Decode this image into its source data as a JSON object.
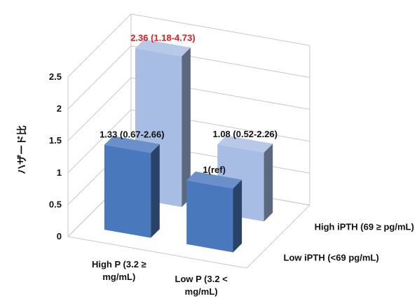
{
  "chart_data": {
    "type": "bar",
    "style": "3d-clustered",
    "ylabel": "ハザード比",
    "ylim": [
      0,
      2.5
    ],
    "yticks": [
      "0",
      "0.5",
      "1",
      "1.5",
      "2",
      "2.5"
    ],
    "categories": [
      "High P (3.2 ≥\nmg/mL)",
      "Low P (3.2 <\nmg/mL)"
    ],
    "series": [
      {
        "name": "Low iPTH (<69 pg/mL)",
        "color": "#4a78bd",
        "values": [
          1.33,
          1.0
        ],
        "labels": [
          "1.33 (0.67-2.66)",
          "1(ref)"
        ]
      },
      {
        "name": "High iPTH (69 ≥ pg/mL)",
        "color": "#a8bde3",
        "values": [
          2.36,
          1.08
        ],
        "labels": [
          "2.36 (1.18-4.73)",
          "1.08 (0.52-2.26)"
        ]
      }
    ],
    "highlight_color": "#e31b1b",
    "highlight_label": [
      1,
      0
    ],
    "grid": true
  }
}
